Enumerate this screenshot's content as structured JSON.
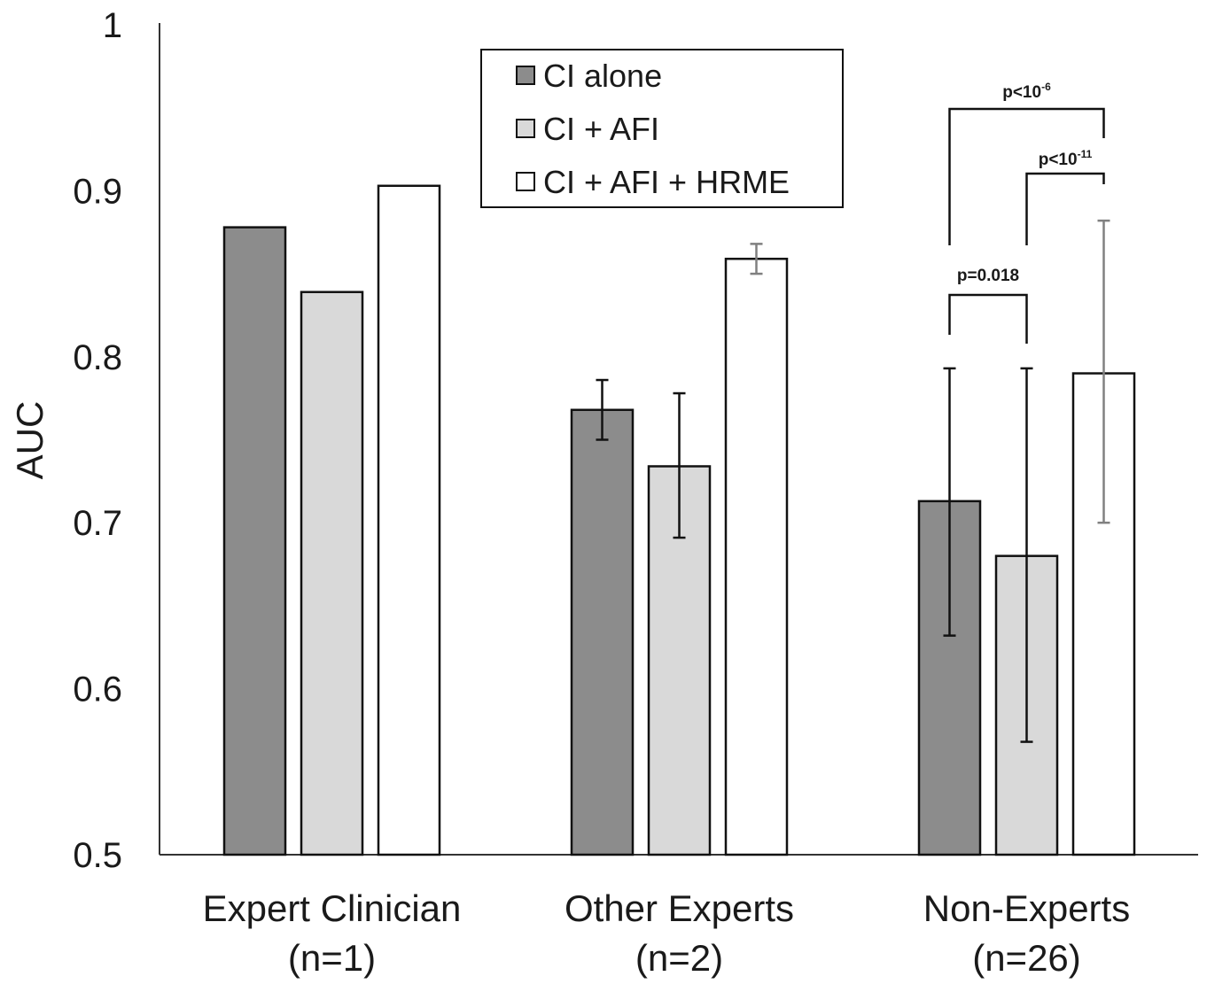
{
  "chart_data": {
    "type": "bar",
    "ylabel": "AUC",
    "xlabel": "",
    "ylim": [
      0.5,
      1
    ],
    "yticks": [
      "0.5",
      "0.6",
      "0.7",
      "0.8",
      "0.9",
      "1"
    ],
    "grid": false,
    "legend_position": "top-center",
    "categories": [
      {
        "line1": "Expert Clinician",
        "line2": "(n=1)"
      },
      {
        "line1": "Other Experts",
        "line2": "(n=2)"
      },
      {
        "line1": "Non-Experts",
        "line2": "(n=26)"
      }
    ],
    "series": [
      {
        "name": "CI alone",
        "color": "#8c8c8c",
        "values": [
          0.878,
          0.768,
          0.713
        ],
        "err_low": [
          null,
          0.75,
          0.632
        ],
        "err_high": [
          null,
          0.786,
          0.793
        ],
        "err_color": "#111111"
      },
      {
        "name": "CI + AFI",
        "color": "#d9d9d9",
        "values": [
          0.839,
          0.734,
          0.68
        ],
        "err_low": [
          null,
          0.691,
          0.568
        ],
        "err_high": [
          null,
          0.778,
          0.793
        ],
        "err_color": "#111111"
      },
      {
        "name": "CI + AFI + HRME",
        "color": "#ffffff",
        "values": [
          0.903,
          0.859,
          0.79
        ],
        "err_low": [
          null,
          0.85,
          0.7
        ],
        "err_high": [
          null,
          0.868,
          0.882
        ],
        "err_color": "#808080"
      }
    ],
    "annotations": [
      {
        "category": 2,
        "from_series": 0,
        "to_series": 1,
        "label": "p=0.018",
        "sup": ""
      },
      {
        "category": 2,
        "from_series": 1,
        "to_series": 2,
        "label": "p<10",
        "sup": "-11"
      },
      {
        "category": 2,
        "from_series": 0,
        "to_series": 2,
        "label": "p<10",
        "sup": "-6"
      }
    ]
  }
}
